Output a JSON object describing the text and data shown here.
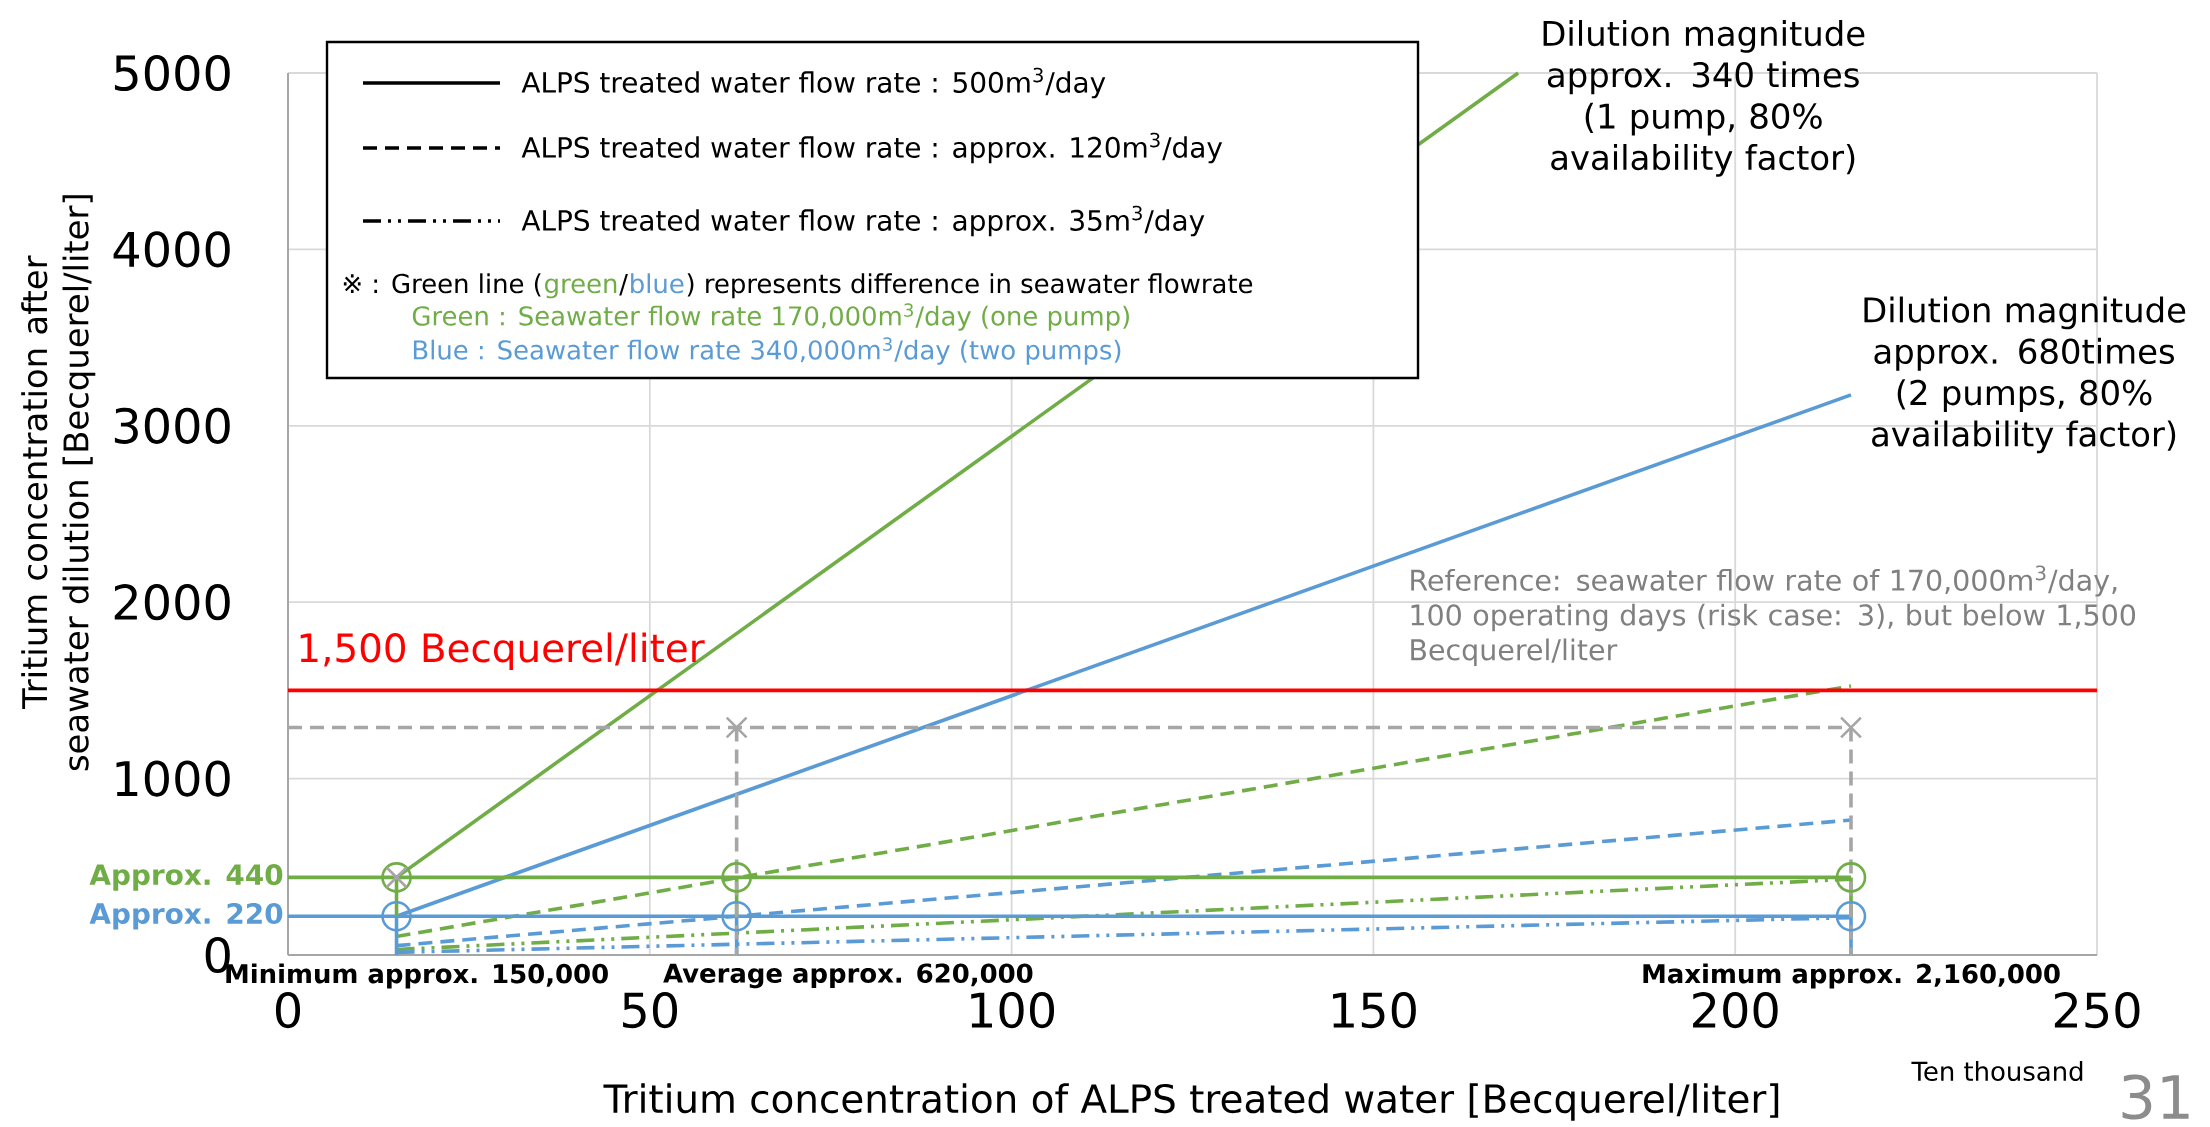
{
  "chart_data": {
    "type": "line",
    "xlabel": "Tritium concentration of ALPS treated water [Becquerel/liter]",
    "ylabel": "Tritium concentration after seawater dilution [Becquerel/liter]",
    "xlim": [
      0,
      250
    ],
    "ylim": [
      0,
      5000
    ],
    "xticks": [
      0,
      50,
      100,
      150,
      200,
      250
    ],
    "yticks": [
      0,
      1000,
      2000,
      3000,
      4000,
      5000
    ],
    "grid": true,
    "series": [
      {
        "color": "#70ad47",
        "line_style": "solid",
        "x": [
          15,
          170
        ],
        "values": [
          440,
          5000
        ]
      },
      {
        "color": "#5b9bd5",
        "line_style": "solid",
        "x": [
          15,
          216
        ],
        "values": [
          220,
          3175
        ]
      },
      {
        "color": "#70ad47",
        "line_style": "dashed",
        "x": [
          15,
          216
        ],
        "values": [
          105,
          1525
        ]
      },
      {
        "color": "#5b9bd5",
        "line_style": "dashed",
        "x": [
          15,
          216
        ],
        "values": [
          53,
          765
        ]
      },
      {
        "color": "#70ad47",
        "line_style": "dashdot",
        "x": [
          15,
          216
        ],
        "values": [
          31,
          430
        ]
      },
      {
        "color": "#5b9bd5",
        "line_style": "dashdot",
        "x": [
          15,
          216
        ],
        "values": [
          15,
          212
        ]
      },
      {
        "color": "#70ad47",
        "x": [
          0,
          216
        ],
        "values": [
          440,
          440
        ]
      },
      {
        "color": "#5b9bd5",
        "x": [
          0,
          216
        ],
        "values": [
          220,
          220
        ]
      },
      {
        "color": "#70ad47",
        "x": [
          15,
          15,
          null,
          62,
          62,
          null,
          216,
          216
        ],
        "values": [
          220,
          440,
          null,
          220,
          440,
          null,
          220,
          440
        ]
      },
      {
        "color": "#5b9bd5",
        "x": [
          15,
          15,
          null,
          62,
          62,
          null,
          216,
          216
        ],
        "values": [
          0,
          220,
          null,
          0,
          220,
          null,
          0,
          220
        ]
      },
      {
        "color": "#a6a6a6",
        "line_style": "dashed",
        "x": [
          0,
          216
        ],
        "values": [
          1290,
          1290
        ]
      },
      {
        "color": "#a6a6a6",
        "line_style": "dashed",
        "x": [
          62,
          62,
          null,
          216,
          216
        ],
        "values": [
          1290,
          0,
          null,
          1290,
          0
        ]
      },
      {
        "type": "scatter",
        "marker": "circle",
        "color": "#70ad47",
        "x": [
          15,
          62,
          216
        ],
        "values": [
          440,
          440,
          440
        ]
      },
      {
        "type": "scatter",
        "marker": "circle",
        "color": "#5b9bd5",
        "x": [
          15,
          62,
          216
        ],
        "values": [
          220,
          220,
          220
        ]
      },
      {
        "type": "scatter",
        "marker": "cross",
        "color": "#a6a6a6",
        "x": [
          15,
          62,
          216
        ],
        "values": [
          440,
          1290,
          1290
        ]
      }
    ],
    "ref_lines": [
      {
        "axis": "y",
        "value": 1500,
        "label": "1,500 Becquerel/liter",
        "color": "#ff0000"
      }
    ],
    "annotations": [
      {
        "text": "Dilution magnitude approx. 340 times (1 pump, 80% availability factor)",
        "x": 170,
        "y": 5000
      },
      {
        "text": "Dilution magnitude approx. 680times (2 pumps, 80% availability factor)",
        "x": 216,
        "y": 3175
      },
      "Reference: seawater flow rate of 170,000m$^{3}$/day, 100 operating days (risk case: 3), but below 1,500 Becquerel/liter",
      {
        "text": "Approx. 440",
        "x": 0,
        "y": 440
      },
      {
        "text": "Approx. 220",
        "x": 0,
        "y": 220
      },
      {
        "text": "Minimum approx. 150,000",
        "x": 15,
        "y": 0
      },
      {
        "text": "Average approx. 620,000",
        "x": 62,
        "y": 0
      },
      {
        "text": "Maximum approx. 2,160,000",
        "x": 216,
        "y": 0
      },
      "Ten thousand",
      "ALPS treated water flow rate : 500m$^{3}$/day",
      "ALPS treated water flow rate : approx. 120m$^{3}$/day",
      "ALPS treated water flow rate : approx. 35m$^{3}$/day",
      "※ : Green line (",
      "green",
      "/",
      "blue",
      ") represents difference in seawater flowrate",
      "Green : Seawater flow rate 170,000m$^{3}$/day (one pump)",
      "Blue : Seawater flow rate 340,000m$^{3}$/day (two pumps)",
      "31"
    ]
  }
}
